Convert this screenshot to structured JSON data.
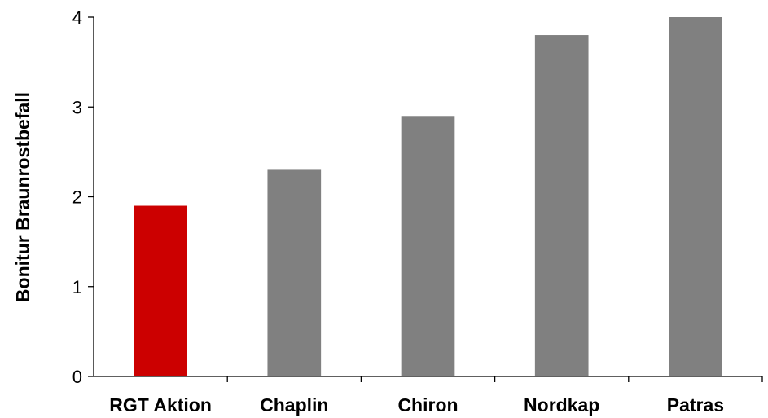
{
  "chart_data": {
    "type": "bar",
    "categories": [
      "RGT Aktion",
      "Chaplin",
      "Chiron",
      "Nordkap",
      "Patras"
    ],
    "values": [
      1.9,
      2.3,
      2.9,
      3.8,
      4.0
    ],
    "colors": [
      "#cc0000",
      "#808080",
      "#808080",
      "#808080",
      "#808080"
    ],
    "ylabel": "Bonitur  Braunrostbefall",
    "xlabel": "",
    "ylim": [
      0,
      4
    ],
    "yticks": [
      0,
      1,
      2,
      3,
      4
    ],
    "grid": false,
    "legend": "none"
  }
}
